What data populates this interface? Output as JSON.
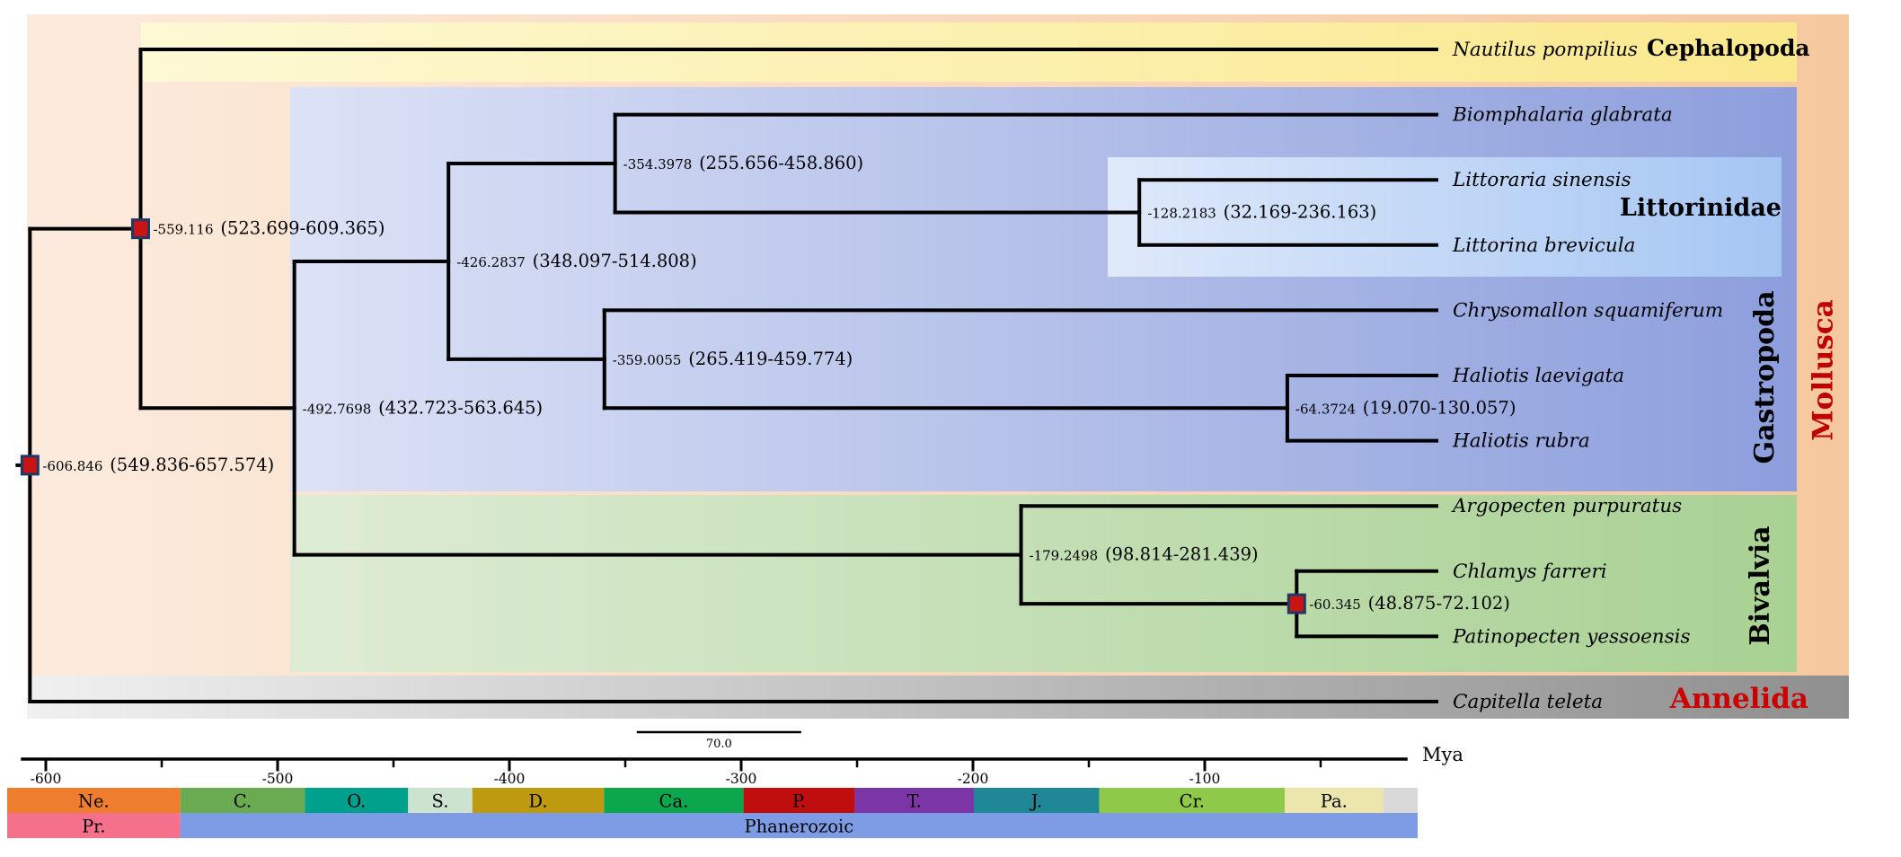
{
  "time_axis": {
    "unit_label": "Mya",
    "major_ticks": [
      {
        "label": "-600",
        "value": -600
      },
      {
        "label": "-500",
        "value": -500
      },
      {
        "label": "-400",
        "value": -400
      },
      {
        "label": "-300",
        "value": -300
      },
      {
        "label": "-200",
        "value": -200
      },
      {
        "label": "-100",
        "value": -100
      }
    ],
    "minor_tick_values": [
      -550,
      -450,
      -350,
      -250,
      -150,
      -50
    ],
    "scale_bar": {
      "label": "70.0",
      "length_myr": 70
    }
  },
  "tree": {
    "age_mya": -606.846,
    "age_label": "-606.846",
    "hpd_label": "(549.836-657.574)",
    "marker": true,
    "children": [
      {
        "age_mya": -559.116,
        "age_label": "-559.116",
        "hpd_label": "(523.699-609.365)",
        "marker": true,
        "children": [
          {
            "name": "Nautilus pompilius",
            "suffix": "Cephalopoda"
          },
          {
            "age_mya": -492.7698,
            "age_label": "-492.7698",
            "hpd_label": "(432.723-563.645)",
            "children": [
              {
                "age_mya": -426.2837,
                "age_label": "-426.2837",
                "hpd_label": "(348.097-514.808)",
                "children": [
                  {
                    "age_mya": -354.3978,
                    "age_label": "-354.3978",
                    "hpd_label": "(255.656-458.860)",
                    "children": [
                      {
                        "name": "Biomphalaria glabrata"
                      },
                      {
                        "age_mya": -128.2183,
                        "age_label": "-128.2183",
                        "hpd_label": "(32.169-236.163)",
                        "children": [
                          {
                            "name": "Littoraria sinensis"
                          },
                          {
                            "name": "Littorina brevicula"
                          }
                        ]
                      }
                    ]
                  },
                  {
                    "age_mya": -359.0055,
                    "age_label": "-359.0055",
                    "hpd_label": "(265.419-459.774)",
                    "children": [
                      {
                        "name": "Chrysomallon squamiferum"
                      },
                      {
                        "age_mya": -64.3724,
                        "age_label": "-64.3724",
                        "hpd_label": "(19.070-130.057)",
                        "children": [
                          {
                            "name": "Haliotis laevigata"
                          },
                          {
                            "name": "Haliotis rubra"
                          }
                        ]
                      }
                    ]
                  }
                ]
              },
              {
                "age_mya": -179.2498,
                "age_label": "-179.2498",
                "hpd_label": "(98.814-281.439)",
                "children": [
                  {
                    "name": "Argopecten purpuratus"
                  },
                  {
                    "age_mya": -60.345,
                    "age_label": "-60.345",
                    "hpd_label": "(48.875-72.102)",
                    "marker": true,
                    "children": [
                      {
                        "name": "Chlamys farreri"
                      },
                      {
                        "name": "Patinopecten yessoensis"
                      }
                    ]
                  }
                ]
              }
            ]
          }
        ]
      },
      {
        "name": "Capitella teleta"
      }
    ]
  },
  "clade_boxes": {
    "mollusca": {
      "label": "Mollusca",
      "gradient_from": "#fcebdd",
      "gradient_to": "#f6c89f",
      "label_color": "#bf0000"
    },
    "cephalopoda": {
      "label": "",
      "gradient_from": "#fdf9d4",
      "gradient_to": "#fae88c"
    },
    "gastropoda": {
      "label": "Gastropoda",
      "gradient_from": "#dce2f6",
      "gradient_to": "#8c9edc",
      "label_color": "#000000"
    },
    "littorinidae": {
      "label": "Littorinidae",
      "gradient_from": "#dfe9fa",
      "gradient_to": "#a5c6f3",
      "label_color": "#000000"
    },
    "bivalvia": {
      "label": "Bivalvia",
      "gradient_from": "#deecd5",
      "gradient_to": "#a8d193",
      "label_color": "#000000"
    },
    "annelida": {
      "label": "Annelida",
      "gradient_from": "#f0f0f0",
      "gradient_to": "#8f8f8f",
      "label_color": "#cc0000"
    }
  },
  "geo_timescale": {
    "rows": [
      {
        "name": "periods",
        "segments": [
          {
            "label": "Ne.",
            "from_mya": -617,
            "to_mya": -542,
            "color": "#ee7d2e"
          },
          {
            "label": "C.",
            "from_mya": -542,
            "to_mya": -488.3,
            "color": "#6aaa51"
          },
          {
            "label": "O.",
            "from_mya": -488.3,
            "to_mya": -443.7,
            "color": "#00a18c"
          },
          {
            "label": "S.",
            "from_mya": -443.7,
            "to_mya": -416,
            "color": "#cbe3cf"
          },
          {
            "label": "D.",
            "from_mya": -416,
            "to_mya": -359.2,
            "color": "#bd9a0f"
          },
          {
            "label": "Ca.",
            "from_mya": -359.2,
            "to_mya": -299,
            "color": "#0ca64d"
          },
          {
            "label": "P.",
            "from_mya": -299,
            "to_mya": -251,
            "color": "#c00d0d"
          },
          {
            "label": "T.",
            "from_mya": -251,
            "to_mya": -199.6,
            "color": "#7b35a6"
          },
          {
            "label": "J.",
            "from_mya": -199.6,
            "to_mya": -145.5,
            "color": "#1f8795"
          },
          {
            "label": "Cr.",
            "from_mya": -145.5,
            "to_mya": -65.5,
            "color": "#8ec949"
          },
          {
            "label": "Pa.",
            "from_mya": -65.5,
            "to_mya": -23,
            "color": "#ede6ac"
          },
          {
            "label": "",
            "from_mya": -23,
            "to_mya": 0,
            "color": "#d8d8d8"
          }
        ]
      },
      {
        "name": "eras",
        "segments": [
          {
            "label": "Pr.",
            "from_mya": -617,
            "to_mya": -542,
            "color": "#f4708b"
          },
          {
            "label": "Phanerozoic",
            "from_mya": -542,
            "to_mya": 0,
            "color": "#7e9ce6"
          }
        ]
      }
    ]
  },
  "style_colors": {
    "branch": "#000000",
    "calibration_marker_fill": "#c81414",
    "calibration_marker_border": "#1f3864",
    "text": "#000000"
  }
}
